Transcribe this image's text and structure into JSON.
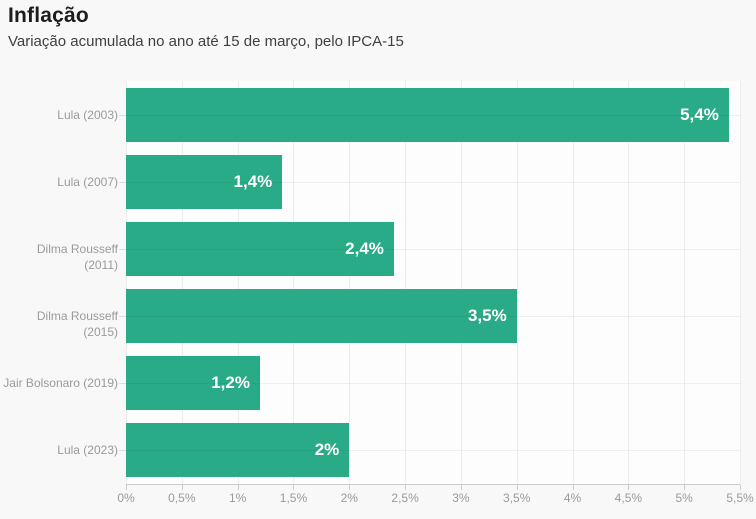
{
  "chart_data": {
    "type": "bar",
    "orientation": "horizontal",
    "title": "Inflação",
    "subtitle": "Variação acumulada no ano até 15 de março, pelo IPCA-15",
    "categories": [
      "Lula (2003)",
      "Lula (2007)",
      "Dilma Rousseff (2011)",
      "Dilma Rousseff (2015)",
      "Jair Bolsonaro (2019)",
      "Lula (2023)"
    ],
    "values": [
      5.4,
      1.4,
      2.4,
      3.5,
      1.2,
      2
    ],
    "value_labels": [
      "5,4%",
      "1,4%",
      "2,4%",
      "3,5%",
      "1,2%",
      "2%"
    ],
    "xlabel": "",
    "ylabel": "",
    "xlim": [
      0,
      5.5
    ],
    "x_tick_values": [
      0,
      0.5,
      1,
      1.5,
      2,
      2.5,
      3,
      3.5,
      4,
      4.5,
      5,
      5.5
    ],
    "x_tick_labels": [
      "0%",
      "0,5%",
      "1%",
      "1,5%",
      "2%",
      "2,5%",
      "3%",
      "3,5%",
      "4%",
      "4,5%",
      "5%",
      "5,5%"
    ],
    "legend": false,
    "grid": true,
    "colors": {
      "bar": "#2aab87",
      "value_label": "#ffffff",
      "axis_line": "#cccccc",
      "gridline": "#ececec",
      "tick_label": "#9a9a9a",
      "category_label": "#9a9a9a",
      "plot_background": "#fdfdfd",
      "page_background": "#f8f8f8",
      "title": "#1d1d1d",
      "subtitle": "#3f3f3f"
    }
  }
}
